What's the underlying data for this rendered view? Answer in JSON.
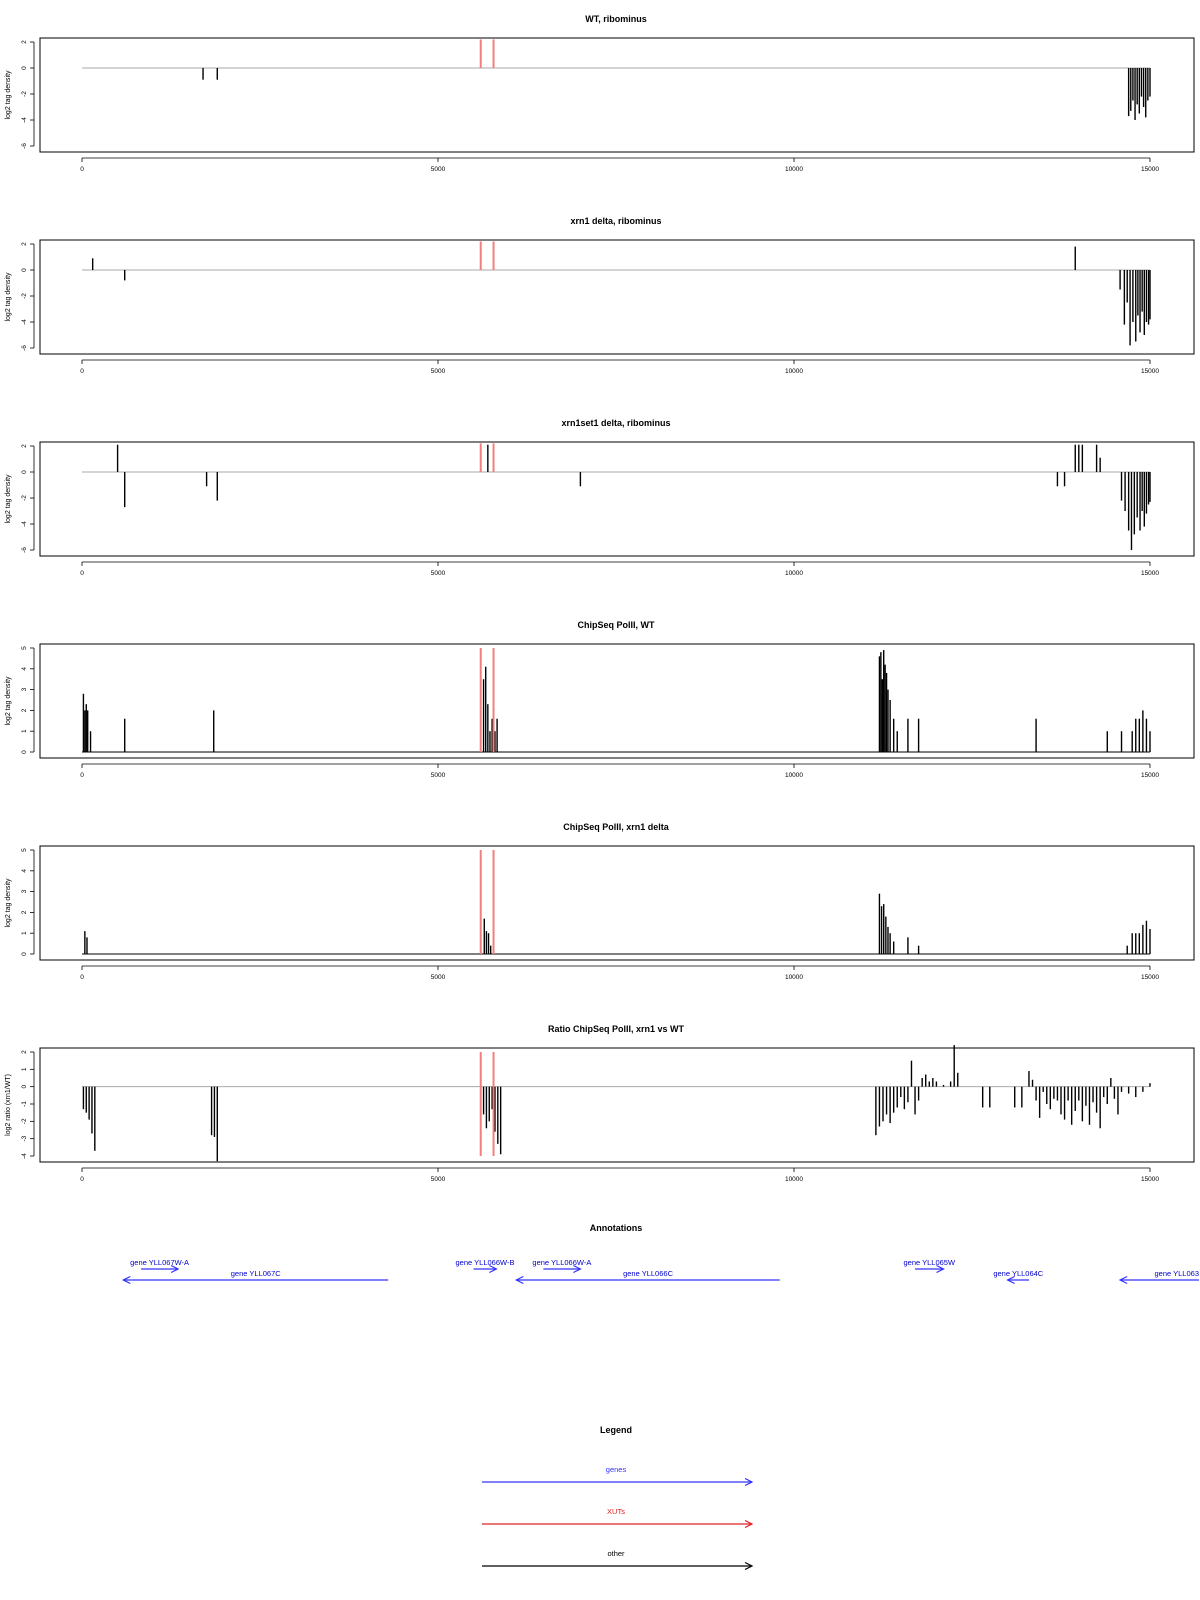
{
  "chart_data": [
    {
      "type": "bar",
      "title": "WT, ribominus",
      "ylabel": "log2 tag density",
      "xlim": [
        0,
        15000
      ],
      "ylim": [
        -6,
        2
      ],
      "xticks": [
        0,
        5000,
        10000,
        15000
      ],
      "yticks": [
        -6,
        -4,
        -2,
        0,
        2
      ],
      "highlight_x": [
        5600,
        5780
      ],
      "series": [
        {
          "x": [
            1700,
            1900
          ],
          "y": [
            -0.9,
            -0.9
          ]
        },
        {
          "x": [
            14700,
            14730,
            14760,
            14790,
            14820,
            14850,
            14880,
            14910,
            14940,
            14970,
            15000
          ],
          "y": [
            -3.7,
            -3.3,
            -2.5,
            -4.0,
            -2.8,
            -3.5,
            -2.2,
            -3.0,
            -3.8,
            -2.5,
            -2.2
          ]
        }
      ]
    },
    {
      "type": "bar",
      "title": "xrn1 delta, ribominus",
      "ylabel": "log2 tag density",
      "xlim": [
        0,
        15000
      ],
      "ylim": [
        -6,
        2
      ],
      "xticks": [
        0,
        5000,
        10000,
        15000
      ],
      "yticks": [
        -6,
        -4,
        -2,
        0,
        2
      ],
      "highlight_x": [
        5600,
        5780
      ],
      "series": [
        {
          "x": [
            150,
            600,
            13950
          ],
          "y": [
            0.9,
            -0.8,
            1.8
          ]
        },
        {
          "x": [
            14580,
            14640,
            14680,
            14720,
            14760,
            14800,
            14830,
            14860,
            14890,
            14920,
            14950,
            14980,
            15000
          ],
          "y": [
            -1.5,
            -4.2,
            -2.5,
            -5.8,
            -4.0,
            -5.5,
            -3.5,
            -4.8,
            -3.2,
            -5.0,
            -4.0,
            -4.2,
            -3.8
          ]
        }
      ]
    },
    {
      "type": "bar",
      "title": "xrn1set1 delta, ribominus",
      "ylabel": "log2 tag density",
      "xlim": [
        0,
        15000
      ],
      "ylim": [
        -6,
        2
      ],
      "xticks": [
        0,
        5000,
        10000,
        15000
      ],
      "yticks": [
        -6,
        -4,
        -2,
        0,
        2
      ],
      "highlight_x": [
        5600,
        5780
      ],
      "series": [
        {
          "x": [
            500,
            600,
            1750,
            1900,
            5700,
            7000,
            13700,
            13800,
            13950,
            14000,
            14050,
            14250,
            14300
          ],
          "y": [
            2.1,
            -2.7,
            -1.1,
            -2.2,
            2.1,
            -1.1,
            -1.1,
            -1.1,
            2.1,
            2.1,
            2.1,
            2.1,
            1.1
          ]
        },
        {
          "x": [
            14600,
            14650,
            14700,
            14740,
            14780,
            14820,
            14860,
            14890,
            14920,
            14950,
            14980,
            15000
          ],
          "y": [
            -2.2,
            -3.0,
            -4.5,
            -6.0,
            -4.8,
            -3.5,
            -4.5,
            -3.0,
            -4.2,
            -3.2,
            -2.5,
            -2.3
          ]
        }
      ]
    },
    {
      "type": "bar",
      "title": "ChipSeq PolII, WT",
      "ylabel": "log2 tag density",
      "xlim": [
        0,
        15000
      ],
      "ylim": [
        0,
        5
      ],
      "xticks": [
        0,
        5000,
        10000,
        15000
      ],
      "yticks": [
        0,
        1,
        2,
        3,
        4,
        5
      ],
      "highlight_x": [
        5600,
        5780
      ],
      "series": [
        {
          "x": [
            20,
            40,
            60,
            80,
            120,
            600,
            1850
          ],
          "y": [
            2.8,
            2.0,
            2.3,
            2.0,
            1.0,
            1.6,
            2.0
          ]
        },
        {
          "x": [
            5640,
            5670,
            5700,
            5730,
            5760,
            5800,
            5830
          ],
          "y": [
            3.5,
            4.1,
            2.3,
            1.0,
            1.6,
            1.0,
            1.6
          ]
        },
        {
          "x": [
            11200,
            11220,
            11240,
            11260,
            11280,
            11300,
            11320,
            11350,
            11400,
            11450,
            11600,
            11750
          ],
          "y": [
            4.6,
            4.8,
            3.5,
            4.9,
            4.2,
            3.8,
            3.0,
            2.5,
            1.6,
            1.0,
            1.6,
            1.6
          ]
        },
        {
          "x": [
            13400,
            14400,
            14600,
            14750,
            14800,
            14850,
            14900,
            14950,
            15000
          ],
          "y": [
            1.6,
            1.0,
            1.0,
            1.0,
            1.6,
            1.6,
            2.0,
            1.6,
            1.0
          ]
        }
      ]
    },
    {
      "type": "bar",
      "title": "ChipSeq PolII, xrn1 delta",
      "ylabel": "log2 tag density",
      "xlim": [
        0,
        15000
      ],
      "ylim": [
        0,
        5
      ],
      "xticks": [
        0,
        5000,
        10000,
        15000
      ],
      "yticks": [
        0,
        1,
        2,
        3,
        4,
        5
      ],
      "highlight_x": [
        5600,
        5780
      ],
      "series": [
        {
          "x": [
            40,
            70
          ],
          "y": [
            1.1,
            0.8
          ]
        },
        {
          "x": [
            5650,
            5680,
            5710,
            5740
          ],
          "y": [
            1.7,
            1.1,
            1.0,
            0.4
          ]
        },
        {
          "x": [
            11200,
            11230,
            11260,
            11290,
            11320,
            11350,
            11400,
            11600,
            11750
          ],
          "y": [
            2.9,
            2.3,
            2.4,
            1.8,
            1.3,
            1.0,
            0.6,
            0.8,
            0.4
          ]
        },
        {
          "x": [
            14680,
            14750,
            14800,
            14850,
            14900,
            14950,
            15000
          ],
          "y": [
            0.4,
            1.0,
            1.0,
            1.0,
            1.4,
            1.6,
            1.2
          ]
        }
      ]
    },
    {
      "type": "bar",
      "title": "Ratio ChipSeq PolII, xrn1 vs WT",
      "ylabel": "log2 ratio (xrn1/WT)",
      "xlim": [
        0,
        15000
      ],
      "ylim": [
        -4,
        2
      ],
      "xticks": [
        0,
        5000,
        10000,
        15000
      ],
      "yticks": [
        -4,
        -3,
        -2,
        -1,
        0,
        1,
        2
      ],
      "highlight_x": [
        5600,
        5780
      ],
      "series": [
        {
          "x": [
            20,
            60,
            100,
            140,
            180
          ],
          "y": [
            -1.3,
            -1.5,
            -1.9,
            -2.7,
            -3.7
          ]
        },
        {
          "x": [
            1820,
            1860,
            1900
          ],
          "y": [
            -2.8,
            -2.9,
            -4.3
          ]
        },
        {
          "x": [
            5600,
            5640,
            5680,
            5720,
            5760,
            5800,
            5840,
            5880
          ],
          "y": [
            -2.0,
            -1.6,
            -2.4,
            -2.0,
            -1.3,
            -2.6,
            -3.3,
            -3.9
          ]
        },
        {
          "x": [
            11150,
            11200,
            11250,
            11300,
            11350,
            11400,
            11450,
            11500,
            11550,
            11600,
            11650,
            11700,
            11750,
            11800,
            11850,
            11900,
            11950,
            12000,
            12100,
            12200,
            12250,
            12300
          ],
          "y": [
            -2.8,
            -2.3,
            -2.0,
            -1.6,
            -2.1,
            -1.5,
            -1.2,
            -0.6,
            -1.3,
            -0.9,
            1.5,
            -1.6,
            -0.8,
            0.5,
            0.7,
            0.3,
            0.5,
            0.3,
            0.1,
            0.3,
            2.4,
            0.8
          ]
        },
        {
          "x": [
            12650,
            12750,
            13100,
            13200,
            13300,
            13350,
            13400,
            13450,
            13500,
            13550,
            13600,
            13650,
            13700,
            13750,
            13800,
            13850,
            13900,
            13950,
            14000,
            14050,
            14100,
            14150,
            14200,
            14250,
            14300,
            14350,
            14400,
            14450,
            14500,
            14550,
            14600,
            14700,
            14800,
            14900,
            15000
          ],
          "y": [
            -1.2,
            -1.2,
            -1.2,
            -1.2,
            0.9,
            0.4,
            -0.8,
            -1.8,
            -0.3,
            -1.0,
            -1.3,
            -0.7,
            -0.8,
            -1.6,
            -1.9,
            -0.8,
            -2.2,
            -1.4,
            -0.8,
            -2.0,
            -1.1,
            -2.2,
            -0.9,
            -1.5,
            -2.4,
            -0.6,
            -1.0,
            0.5,
            -0.7,
            -1.6,
            -0.3,
            -0.4,
            -0.6,
            -0.3,
            0.2
          ]
        }
      ]
    }
  ],
  "annotations": {
    "title": "Annotations",
    "genes": [
      {
        "label": "gene YLL067W-A",
        "start": 830,
        "end": 1350,
        "strand": "+",
        "row": 0
      },
      {
        "label": "gene YLL067C",
        "start": 580,
        "end": 4300,
        "strand": "-",
        "row": 1
      },
      {
        "label": "gene YLL066W-B",
        "start": 5500,
        "end": 5820,
        "strand": "+",
        "row": 0
      },
      {
        "label": "gene YLL066W-A",
        "start": 6480,
        "end": 7000,
        "strand": "+",
        "row": 0
      },
      {
        "label": "gene YLL066C",
        "start": 6100,
        "end": 9800,
        "strand": "-",
        "row": 1
      },
      {
        "label": "gene YLL065W",
        "start": 11700,
        "end": 12100,
        "strand": "+",
        "row": 0
      },
      {
        "label": "gene YLL064C",
        "start": 13000,
        "end": 13300,
        "strand": "-",
        "row": 1
      },
      {
        "label": "gene YLL063",
        "start": 14580,
        "end": 15700,
        "strand": "-",
        "row": 1
      }
    ]
  },
  "legend": {
    "title": "Legend",
    "items": [
      {
        "label": "genes",
        "color": "#3333ff"
      },
      {
        "label": "XUTs",
        "color": "#e02020"
      },
      {
        "label": "other",
        "color": "#000000"
      }
    ]
  },
  "colors": {
    "highlight": "#f08080",
    "baseline": "#aaaaaa",
    "bars": "#000000",
    "gene": "#3333ff"
  }
}
